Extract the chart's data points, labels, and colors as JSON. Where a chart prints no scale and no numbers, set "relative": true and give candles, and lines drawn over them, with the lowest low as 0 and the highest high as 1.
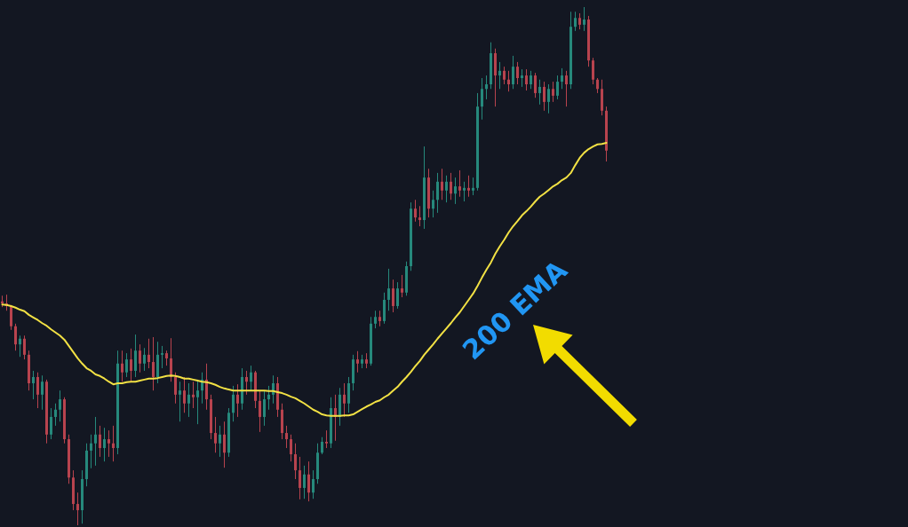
{
  "chart_data": {
    "type": "candlestick",
    "relative": true,
    "tick_labels": false,
    "categories": [
      null,
      null,
      null,
      null,
      null,
      null,
      null,
      null,
      null,
      null,
      null,
      null,
      null,
      null,
      null,
      null,
      null,
      null,
      null,
      null,
      null,
      null,
      null,
      null,
      null,
      null,
      null,
      null,
      null,
      null,
      null,
      null,
      null,
      null,
      null,
      null,
      null,
      null,
      null,
      null,
      null,
      null,
      null,
      null,
      null,
      null,
      null,
      null,
      null,
      null,
      null,
      null,
      null,
      null,
      null,
      null,
      null,
      null,
      null,
      null,
      null,
      null,
      null,
      null,
      null,
      null,
      null,
      null,
      null,
      null,
      null,
      null,
      null,
      null,
      null,
      null,
      null,
      null,
      null,
      null,
      null,
      null,
      null,
      null,
      null,
      null,
      null,
      null,
      null,
      null,
      null,
      null,
      null,
      null,
      null,
      null,
      null,
      null,
      null,
      null,
      null,
      null,
      null,
      null,
      null,
      null,
      null,
      null,
      null,
      null,
      null,
      null,
      null,
      null,
      null,
      null,
      null,
      null,
      null,
      null,
      null,
      null,
      null,
      null,
      null,
      null,
      null,
      null,
      null,
      null,
      null,
      null,
      null,
      null,
      null,
      null,
      null
    ],
    "ohlc": [
      [
        0.432,
        0.443,
        0.421,
        0.428
      ],
      [
        0.428,
        0.445,
        0.414,
        0.423
      ],
      [
        0.423,
        0.425,
        0.377,
        0.384
      ],
      [
        0.384,
        0.389,
        0.337,
        0.349
      ],
      [
        0.349,
        0.366,
        0.325,
        0.36
      ],
      [
        0.36,
        0.366,
        0.32,
        0.329
      ],
      [
        0.329,
        0.337,
        0.26,
        0.274
      ],
      [
        0.274,
        0.298,
        0.243,
        0.286
      ],
      [
        0.286,
        0.295,
        0.226,
        0.252
      ],
      [
        0.252,
        0.289,
        0.223,
        0.277
      ],
      [
        0.277,
        0.281,
        0.158,
        0.175
      ],
      [
        0.175,
        0.226,
        0.166,
        0.209
      ],
      [
        0.209,
        0.235,
        0.192,
        0.223
      ],
      [
        0.223,
        0.26,
        0.2,
        0.243
      ],
      [
        0.243,
        0.247,
        0.158,
        0.166
      ],
      [
        0.166,
        0.175,
        0.08,
        0.092
      ],
      [
        0.092,
        0.106,
        0.029,
        0.041
      ],
      [
        0.041,
        0.063,
        0,
        0.029
      ],
      [
        0.029,
        0.106,
        0.003,
        0.089
      ],
      [
        0.089,
        0.158,
        0.075,
        0.144
      ],
      [
        0.144,
        0.175,
        0.11,
        0.158
      ],
      [
        0.158,
        0.209,
        0.115,
        0.175
      ],
      [
        0.175,
        0.192,
        0.132,
        0.149
      ],
      [
        0.149,
        0.188,
        0.123,
        0.166
      ],
      [
        0.166,
        0.183,
        0.132,
        0.158
      ],
      [
        0.158,
        0.192,
        0.123,
        0.149
      ],
      [
        0.149,
        0.337,
        0.137,
        0.312
      ],
      [
        0.312,
        0.337,
        0.277,
        0.295
      ],
      [
        0.295,
        0.332,
        0.286,
        0.32
      ],
      [
        0.32,
        0.341,
        0.277,
        0.298
      ],
      [
        0.298,
        0.368,
        0.286,
        0.337
      ],
      [
        0.337,
        0.349,
        0.295,
        0.312
      ],
      [
        0.312,
        0.342,
        0.298,
        0.329
      ],
      [
        0.329,
        0.36,
        0.303,
        0.315
      ],
      [
        0.315,
        0.363,
        0.26,
        0.286
      ],
      [
        0.286,
        0.354,
        0.274,
        0.329
      ],
      [
        0.329,
        0.346,
        0.303,
        0.332
      ],
      [
        0.332,
        0.337,
        0.308,
        0.322
      ],
      [
        0.322,
        0.361,
        0.277,
        0.286
      ],
      [
        0.286,
        0.295,
        0.235,
        0.252
      ],
      [
        0.252,
        0.277,
        0.2,
        0.26
      ],
      [
        0.26,
        0.286,
        0.217,
        0.235
      ],
      [
        0.235,
        0.274,
        0.209,
        0.252
      ],
      [
        0.252,
        0.277,
        0.226,
        0.247
      ],
      [
        0.247,
        0.281,
        0.195,
        0.26
      ],
      [
        0.26,
        0.295,
        0.235,
        0.281
      ],
      [
        0.281,
        0.312,
        0.223,
        0.243
      ],
      [
        0.243,
        0.252,
        0.166,
        0.178
      ],
      [
        0.178,
        0.209,
        0.14,
        0.158
      ],
      [
        0.158,
        0.192,
        0.132,
        0.175
      ],
      [
        0.175,
        0.2,
        0.111,
        0.14
      ],
      [
        0.14,
        0.226,
        0.132,
        0.217
      ],
      [
        0.217,
        0.269,
        0.2,
        0.252
      ],
      [
        0.252,
        0.272,
        0.209,
        0.235
      ],
      [
        0.235,
        0.303,
        0.223,
        0.286
      ],
      [
        0.286,
        0.298,
        0.252,
        0.277
      ],
      [
        0.277,
        0.308,
        0.26,
        0.295
      ],
      [
        0.295,
        0.298,
        0.226,
        0.24
      ],
      [
        0.24,
        0.26,
        0.18,
        0.209
      ],
      [
        0.209,
        0.26,
        0.192,
        0.243
      ],
      [
        0.243,
        0.269,
        0.223,
        0.252
      ],
      [
        0.252,
        0.289,
        0.235,
        0.274
      ],
      [
        0.274,
        0.286,
        0.209,
        0.223
      ],
      [
        0.223,
        0.235,
        0.166,
        0.178
      ],
      [
        0.178,
        0.192,
        0.149,
        0.166
      ],
      [
        0.166,
        0.175,
        0.123,
        0.137
      ],
      [
        0.137,
        0.158,
        0.089,
        0.106
      ],
      [
        0.106,
        0.132,
        0.05,
        0.072
      ],
      [
        0.072,
        0.115,
        0.051,
        0.098
      ],
      [
        0.098,
        0.123,
        0.046,
        0.063
      ],
      [
        0.063,
        0.106,
        0.051,
        0.089
      ],
      [
        0.089,
        0.158,
        0.08,
        0.14
      ],
      [
        0.14,
        0.17,
        0.137,
        0.161
      ],
      [
        0.161,
        0.183,
        0.149,
        0.158
      ],
      [
        0.158,
        0.247,
        0.149,
        0.226
      ],
      [
        0.226,
        0.252,
        0.163,
        0.209
      ],
      [
        0.209,
        0.265,
        0.192,
        0.252
      ],
      [
        0.252,
        0.274,
        0.209,
        0.235
      ],
      [
        0.235,
        0.286,
        0.217,
        0.274
      ],
      [
        0.274,
        0.329,
        0.26,
        0.32
      ],
      [
        0.32,
        0.336,
        0.295,
        0.312
      ],
      [
        0.312,
        0.329,
        0.303,
        0.32
      ],
      [
        0.32,
        0.332,
        0.303,
        0.312
      ],
      [
        0.312,
        0.402,
        0.308,
        0.389
      ],
      [
        0.389,
        0.414,
        0.38,
        0.402
      ],
      [
        0.402,
        0.414,
        0.384,
        0.394
      ],
      [
        0.394,
        0.449,
        0.389,
        0.435
      ],
      [
        0.435,
        0.495,
        0.414,
        0.457
      ],
      [
        0.457,
        0.474,
        0.411,
        0.423
      ],
      [
        0.423,
        0.469,
        0.418,
        0.457
      ],
      [
        0.457,
        0.483,
        0.44,
        0.449
      ],
      [
        0.449,
        0.509,
        0.443,
        0.5
      ],
      [
        0.5,
        0.623,
        0.491,
        0.611
      ],
      [
        0.611,
        0.628,
        0.586,
        0.594
      ],
      [
        0.594,
        0.616,
        0.577,
        0.589
      ],
      [
        0.589,
        0.731,
        0.572,
        0.671
      ],
      [
        0.671,
        0.688,
        0.594,
        0.611
      ],
      [
        0.611,
        0.646,
        0.594,
        0.628
      ],
      [
        0.628,
        0.68,
        0.603,
        0.663
      ],
      [
        0.663,
        0.688,
        0.628,
        0.646
      ],
      [
        0.646,
        0.675,
        0.623,
        0.663
      ],
      [
        0.663,
        0.68,
        0.628,
        0.64
      ],
      [
        0.64,
        0.671,
        0.62,
        0.654
      ],
      [
        0.654,
        0.685,
        0.634,
        0.646
      ],
      [
        0.646,
        0.663,
        0.625,
        0.651
      ],
      [
        0.651,
        0.675,
        0.634,
        0.646
      ],
      [
        0.646,
        0.671,
        0.637,
        0.651
      ],
      [
        0.651,
        0.834,
        0.646,
        0.808
      ],
      [
        0.808,
        0.863,
        0.783,
        0.842
      ],
      [
        0.842,
        0.868,
        0.822,
        0.851
      ],
      [
        0.851,
        0.932,
        0.842,
        0.911
      ],
      [
        0.911,
        0.92,
        0.808,
        0.868
      ],
      [
        0.868,
        0.894,
        0.842,
        0.877
      ],
      [
        0.877,
        0.885,
        0.851,
        0.86
      ],
      [
        0.86,
        0.877,
        0.837,
        0.851
      ],
      [
        0.851,
        0.906,
        0.842,
        0.885
      ],
      [
        0.885,
        0.894,
        0.851,
        0.863
      ],
      [
        0.863,
        0.88,
        0.846,
        0.868
      ],
      [
        0.868,
        0.88,
        0.839,
        0.851
      ],
      [
        0.851,
        0.877,
        0.842,
        0.868
      ],
      [
        0.868,
        0.873,
        0.825,
        0.834
      ],
      [
        0.834,
        0.86,
        0.812,
        0.846
      ],
      [
        0.846,
        0.856,
        0.8,
        0.817
      ],
      [
        0.817,
        0.851,
        0.795,
        0.842
      ],
      [
        0.842,
        0.856,
        0.817,
        0.829
      ],
      [
        0.829,
        0.868,
        0.822,
        0.856
      ],
      [
        0.856,
        0.882,
        0.842,
        0.868
      ],
      [
        0.868,
        0.877,
        0.808,
        0.851
      ],
      [
        0.851,
        0.991,
        0.842,
        0.962
      ],
      [
        0.962,
        0.991,
        0.954,
        0.979
      ],
      [
        0.979,
        0.988,
        0.957,
        0.966
      ],
      [
        0.966,
        1,
        0.954,
        0.976
      ],
      [
        0.976,
        0.983,
        0.885,
        0.897
      ],
      [
        0.897,
        0.902,
        0.851,
        0.86
      ],
      [
        0.86,
        0.863,
        0.834,
        0.842
      ],
      [
        0.842,
        0.86,
        0.791,
        0.8
      ],
      [
        0.8,
        0.808,
        0.702,
        0.723
      ]
    ],
    "colors": [
      "#b8434e",
      "#b8434e",
      "#b8434e",
      "#b8434e",
      "#26897c",
      "#b8434e",
      "#b8434e",
      "#26897c",
      "#b8434e",
      "#26897c",
      "#b8434e",
      "#26897c",
      "#26897c",
      "#26897c",
      "#b8434e",
      "#b8434e",
      "#b8434e",
      "#b8434e",
      "#26897c",
      "#26897c",
      "#26897c",
      "#26897c",
      "#b8434e",
      "#26897c",
      "#b8434e",
      "#b8434e",
      "#26897c",
      "#b8434e",
      "#26897c",
      "#b8434e",
      "#26897c",
      "#b8434e",
      "#26897c",
      "#b8434e",
      "#b8434e",
      "#26897c",
      "#26897c",
      "#b8434e",
      "#b8434e",
      "#b8434e",
      "#26897c",
      "#b8434e",
      "#26897c",
      "#b8434e",
      "#26897c",
      "#26897c",
      "#b8434e",
      "#b8434e",
      "#b8434e",
      "#26897c",
      "#b8434e",
      "#26897c",
      "#26897c",
      "#b8434e",
      "#26897c",
      "#b8434e",
      "#26897c",
      "#b8434e",
      "#b8434e",
      "#26897c",
      "#26897c",
      "#26897c",
      "#b8434e",
      "#b8434e",
      "#b8434e",
      "#b8434e",
      "#b8434e",
      "#b8434e",
      "#26897c",
      "#b8434e",
      "#26897c",
      "#26897c",
      "#26897c",
      "#b8434e",
      "#26897c",
      "#b8434e",
      "#26897c",
      "#b8434e",
      "#26897c",
      "#26897c",
      "#b8434e",
      "#26897c",
      "#b8434e",
      "#26897c",
      "#26897c",
      "#b8434e",
      "#26897c",
      "#26897c",
      "#b8434e",
      "#26897c",
      "#b8434e",
      "#26897c",
      "#26897c",
      "#b8434e",
      "#b8434e",
      "#26897c",
      "#b8434e",
      "#26897c",
      "#26897c",
      "#b8434e",
      "#26897c",
      "#b8434e",
      "#26897c",
      "#b8434e",
      "#26897c",
      "#b8434e",
      "#26897c",
      "#26897c",
      "#26897c",
      "#26897c",
      "#26897c",
      "#b8434e",
      "#26897c",
      "#b8434e",
      "#b8434e",
      "#26897c",
      "#b8434e",
      "#26897c",
      "#b8434e",
      "#26897c",
      "#b8434e",
      "#26897c",
      "#b8434e",
      "#26897c",
      "#b8434e",
      "#26897c",
      "#26897c",
      "#b8434e",
      "#26897c",
      "#26897c",
      "#b8434e",
      "#26897c",
      "#b8434e",
      "#b8434e",
      "#b8434e",
      "#b8434e",
      "#b8434e"
    ],
    "series": [
      {
        "type": "line",
        "color": "#f2e144",
        "marker": "none",
        "values": [
          0.426,
          0.425,
          0.423,
          0.42,
          0.416,
          0.413,
          0.406,
          0.401,
          0.396,
          0.39,
          0.385,
          0.378,
          0.372,
          0.366,
          0.358,
          0.346,
          0.334,
          0.322,
          0.312,
          0.303,
          0.298,
          0.291,
          0.288,
          0.283,
          0.277,
          0.272,
          0.274,
          0.274,
          0.276,
          0.277,
          0.277,
          0.279,
          0.281,
          0.283,
          0.283,
          0.284,
          0.286,
          0.288,
          0.289,
          0.288,
          0.286,
          0.283,
          0.283,
          0.281,
          0.279,
          0.277,
          0.276,
          0.274,
          0.271,
          0.267,
          0.264,
          0.262,
          0.26,
          0.26,
          0.26,
          0.26,
          0.26,
          0.26,
          0.26,
          0.26,
          0.259,
          0.259,
          0.257,
          0.255,
          0.252,
          0.248,
          0.245,
          0.24,
          0.235,
          0.229,
          0.223,
          0.219,
          0.214,
          0.212,
          0.211,
          0.211,
          0.211,
          0.212,
          0.212,
          0.214,
          0.219,
          0.224,
          0.229,
          0.233,
          0.238,
          0.241,
          0.247,
          0.252,
          0.26,
          0.267,
          0.277,
          0.286,
          0.296,
          0.307,
          0.317,
          0.329,
          0.339,
          0.349,
          0.36,
          0.37,
          0.38,
          0.39,
          0.401,
          0.411,
          0.423,
          0.435,
          0.447,
          0.462,
          0.478,
          0.493,
          0.507,
          0.524,
          0.538,
          0.551,
          0.565,
          0.577,
          0.587,
          0.598,
          0.606,
          0.615,
          0.625,
          0.634,
          0.64,
          0.647,
          0.654,
          0.659,
          0.666,
          0.671,
          0.68,
          0.695,
          0.709,
          0.719,
          0.726,
          0.731,
          0.735,
          0.736,
          0.738
        ]
      }
    ],
    "annotations": [
      "200 EMA"
    ]
  }
}
